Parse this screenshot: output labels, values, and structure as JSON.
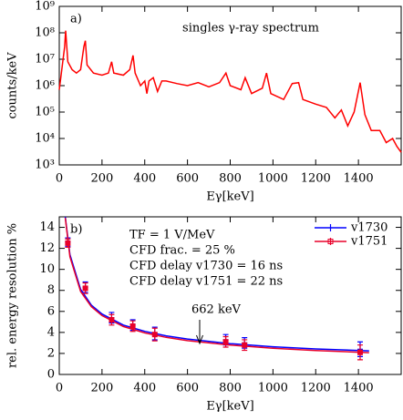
{
  "chart_data": [
    {
      "type": "line",
      "panel_label": "a)",
      "title": "singles γ-ray spectrum",
      "xlabel": "Eγ[keV]",
      "ylabel": "counts/keV",
      "log_y": true,
      "color": "#ff0000",
      "x": [
        0,
        10,
        25,
        30,
        40,
        60,
        80,
        100,
        115,
        122,
        130,
        160,
        200,
        230,
        245,
        255,
        300,
        330,
        345,
        355,
        380,
        400,
        410,
        420,
        440,
        460,
        480,
        500,
        550,
        600,
        650,
        700,
        750,
        780,
        800,
        850,
        870,
        900,
        950,
        970,
        990,
        1050,
        1090,
        1120,
        1140,
        1200,
        1250,
        1290,
        1320,
        1350,
        1380,
        1408,
        1430,
        1460,
        1500,
        1530,
        1560,
        1580,
        1600
      ],
      "values": [
        700000,
        3000000,
        30000000,
        120000000,
        8000000,
        4000000,
        3000000,
        4000000,
        30000000,
        50000000,
        6000000,
        3000000,
        2500000,
        3000000,
        8000000,
        3000000,
        2500000,
        4000000,
        14000000,
        3000000,
        1000000,
        1500000,
        500000,
        1500000,
        2000000,
        600000,
        1500000,
        1500000,
        1200000,
        1000000,
        1300000,
        900000,
        1300000,
        3000000,
        1000000,
        700000,
        2000000,
        500000,
        800000,
        3000000,
        500000,
        300000,
        1200000,
        1300000,
        300000,
        200000,
        150000,
        60000,
        120000,
        30000,
        100000,
        1300000,
        80000,
        20000,
        20000,
        7000,
        10000,
        5000,
        3000
      ],
      "xlim": [
        0,
        1600
      ],
      "xticks": [
        0,
        200,
        400,
        600,
        800,
        1000,
        1200,
        1400
      ],
      "ylim": [
        1000,
        1000000000
      ],
      "yticks": [
        {
          "value": 1000,
          "label": "10³"
        },
        {
          "value": 10000,
          "label": "10⁴"
        },
        {
          "value": 100000,
          "label": "10⁵"
        },
        {
          "value": 1000000,
          "label": "10⁶"
        },
        {
          "value": 10000000,
          "label": "10⁷"
        },
        {
          "value": 100000000,
          "label": "10⁸"
        },
        {
          "value": 1000000000,
          "label": "10⁹"
        }
      ]
    },
    {
      "type": "errorbar",
      "panel_label": "b)",
      "xlabel": "Eγ[keV]",
      "ylabel": "rel. energy resolution %",
      "annotations": [
        "TF = 1 V/MeV",
        "CFD frac. = 25 %",
        "CFD delay v1730 = 16 ns",
        "CFD delay v1751 = 22 ns",
        "662 keV"
      ],
      "legend": "upper right",
      "xlim": [
        0,
        1600
      ],
      "xticks": [
        0,
        200,
        400,
        600,
        800,
        1000,
        1200,
        1400
      ],
      "ylim": [
        0,
        15
      ],
      "yticks": [
        0,
        2,
        4,
        6,
        8,
        10,
        12,
        14
      ],
      "series": [
        {
          "name": "v1730",
          "color": "#0000ff",
          "marker": "plus",
          "x": [
            40,
            122,
            245,
            344,
            447,
            779,
            867,
            1408
          ],
          "values": [
            12.6,
            8.3,
            5.4,
            4.7,
            3.9,
            3.3,
            3.0,
            2.4
          ],
          "errors": [
            0.4,
            0.5,
            0.5,
            0.5,
            0.6,
            0.5,
            0.5,
            0.7
          ],
          "curve_x": [
            28,
            50,
            100,
            150,
            200,
            300,
            400,
            500,
            600,
            800,
            1000,
            1200,
            1450
          ],
          "curve_values": [
            15,
            11.4,
            8.1,
            6.6,
            5.75,
            4.7,
            4.1,
            3.68,
            3.37,
            2.93,
            2.64,
            2.43,
            2.25
          ]
        },
        {
          "name": "v1751",
          "color": "#e8002a",
          "marker": "square",
          "x": [
            40,
            122,
            245,
            344,
            447,
            779,
            867,
            1408
          ],
          "values": [
            12.5,
            8.2,
            5.2,
            4.6,
            3.8,
            3.1,
            2.8,
            2.1
          ],
          "errors": [
            0.4,
            0.5,
            0.5,
            0.5,
            0.6,
            0.5,
            0.5,
            0.7
          ],
          "curve_x": [
            28,
            50,
            100,
            150,
            200,
            300,
            400,
            500,
            600,
            800,
            1000,
            1200,
            1450
          ],
          "curve_values": [
            14.9,
            11.2,
            7.9,
            6.45,
            5.6,
            4.56,
            3.95,
            3.53,
            3.22,
            2.79,
            2.5,
            2.28,
            2.07
          ]
        }
      ]
    }
  ]
}
